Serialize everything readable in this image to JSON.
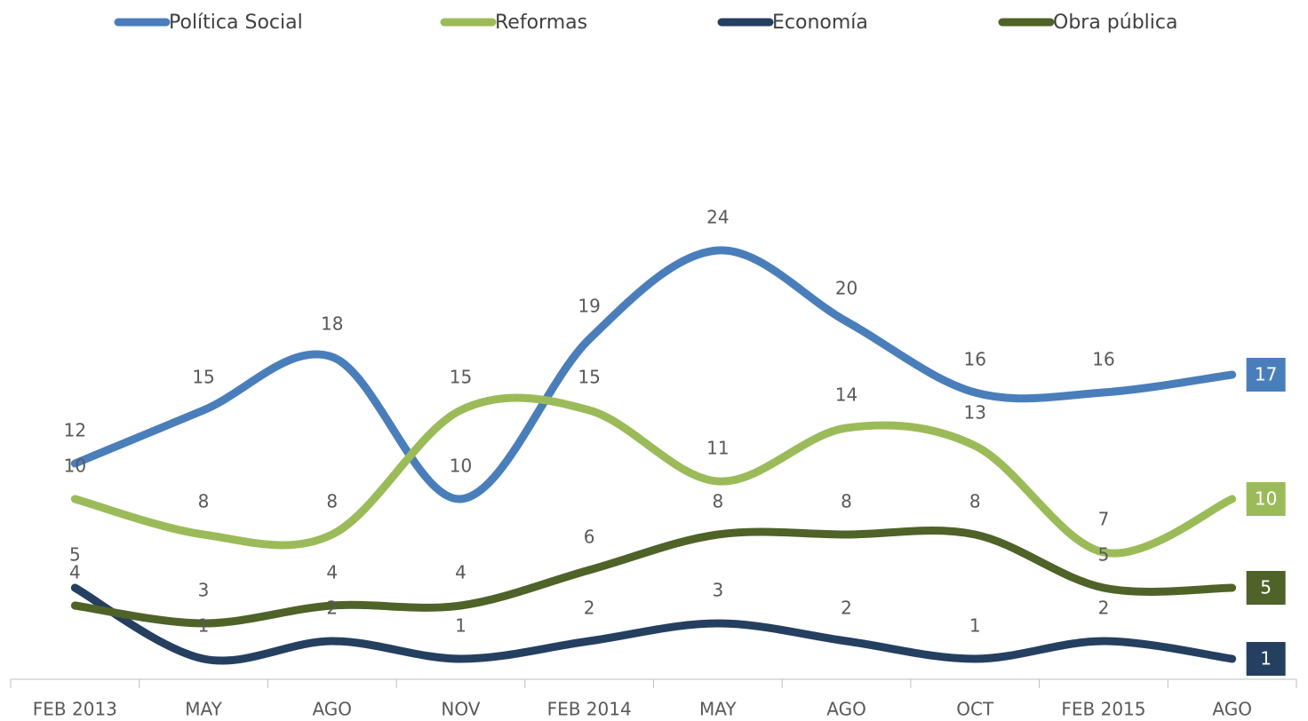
{
  "chart_data": {
    "type": "line",
    "categories": [
      "FEB 2013",
      "MAY",
      "AGO",
      "NOV",
      "FEB 2014",
      "MAY",
      "AGO",
      "OCT",
      "FEB 2015",
      "AGO"
    ],
    "series": [
      {
        "name": "Política Social",
        "color": "#4a7ebb",
        "values": [
          12,
          15,
          18,
          10,
          19,
          24,
          20,
          16,
          16,
          17
        ]
      },
      {
        "name": "Reformas",
        "color": "#9bbb59",
        "values": [
          10,
          8,
          8,
          15,
          15,
          11,
          14,
          13,
          7,
          10
        ]
      },
      {
        "name": "Economía",
        "color": "#243f60",
        "values": [
          5,
          1,
          2,
          1,
          2,
          3,
          2,
          1,
          2,
          1
        ]
      },
      {
        "name": "Obra pública",
        "color": "#4f6228",
        "values": [
          4,
          3,
          4,
          4,
          6,
          8,
          8,
          8,
          5,
          5
        ]
      }
    ],
    "ylim": [
      0,
      25
    ],
    "smooth": true,
    "legend": "top"
  }
}
